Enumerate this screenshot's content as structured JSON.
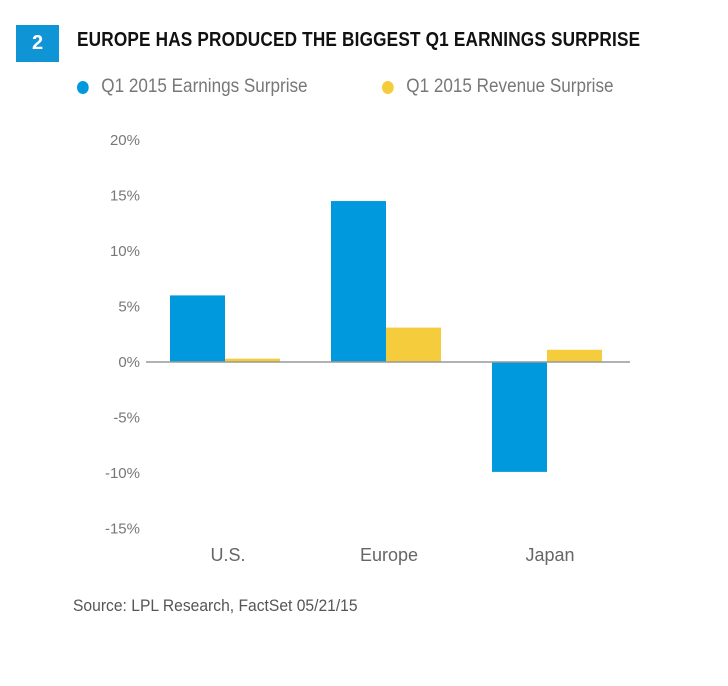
{
  "badge": "2",
  "colors": {
    "earnings": "#0099dd",
    "revenue": "#f5cc3c",
    "badge": "#0f95d6"
  },
  "chart_data": {
    "type": "bar",
    "title": "EUROPE HAS PRODUCED THE BIGGEST Q1 EARNINGS SURPRISE",
    "categories": [
      "U.S.",
      "Europe",
      "Japan"
    ],
    "series": [
      {
        "name": "Q1 2015 Earnings Surprise",
        "values": [
          6.0,
          14.5,
          -9.9
        ]
      },
      {
        "name": "Q1 2015 Revenue Surprise",
        "values": [
          0.3,
          3.1,
          1.1
        ]
      }
    ],
    "yticks": [
      20,
      15,
      10,
      5,
      0,
      -5,
      -10,
      -15
    ],
    "ytick_labels": [
      "20%",
      "15%",
      "10%",
      "5%",
      "0%",
      "-5%",
      "-10%",
      "-15%"
    ],
    "ylim": [
      -15,
      20
    ],
    "xlabel": "",
    "ylabel": "",
    "legend": "top",
    "grid": false
  },
  "source": "Source: LPL Research, FactSet   05/21/15"
}
